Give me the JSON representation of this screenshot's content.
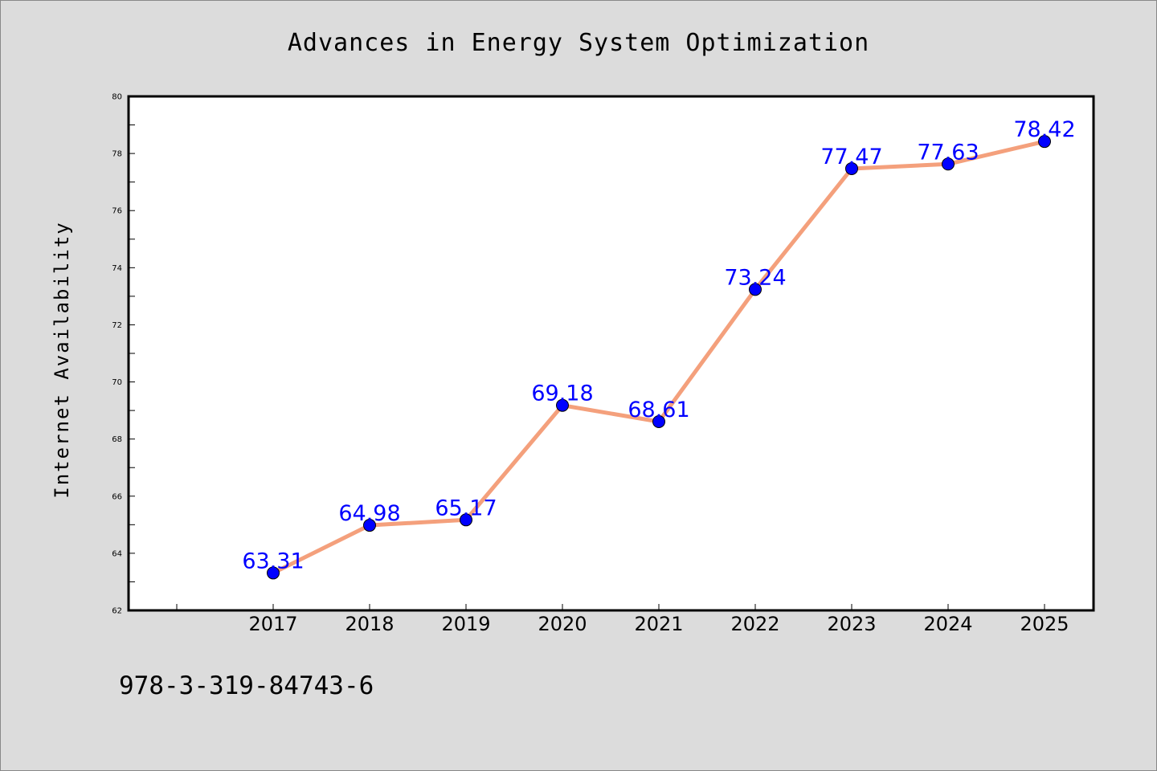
{
  "chart_data": {
    "type": "line",
    "title": "Advances in Energy System Optimization",
    "xlabel": "",
    "ylabel": "Internet Availability",
    "categories": [
      "2017",
      "2018",
      "2019",
      "2020",
      "2021",
      "2022",
      "2023",
      "2024",
      "2025"
    ],
    "series": [
      {
        "values": [
          63.31,
          64.98,
          65.17,
          69.18,
          68.61,
          73.24,
          77.47,
          77.63,
          78.42
        ],
        "labels": [
          "63.31",
          "64.98",
          "65.17",
          "69.18",
          "68.61",
          "73.24",
          "77.47",
          "77.63",
          "78.42"
        ]
      }
    ],
    "ylim": [
      62,
      80
    ],
    "yticks": [
      "62",
      "64",
      "66",
      "68",
      "70",
      "72",
      "74",
      "76",
      "78",
      "80"
    ],
    "grid": false,
    "legend": "none",
    "colors": {
      "line": "#f4a07c",
      "marker": "#0000ff",
      "data_label": "#0000ff",
      "background": "#dcdcdc",
      "plot_background": "#ffffff"
    }
  },
  "footer": {
    "isbn": "978-3-319-84743-6"
  }
}
